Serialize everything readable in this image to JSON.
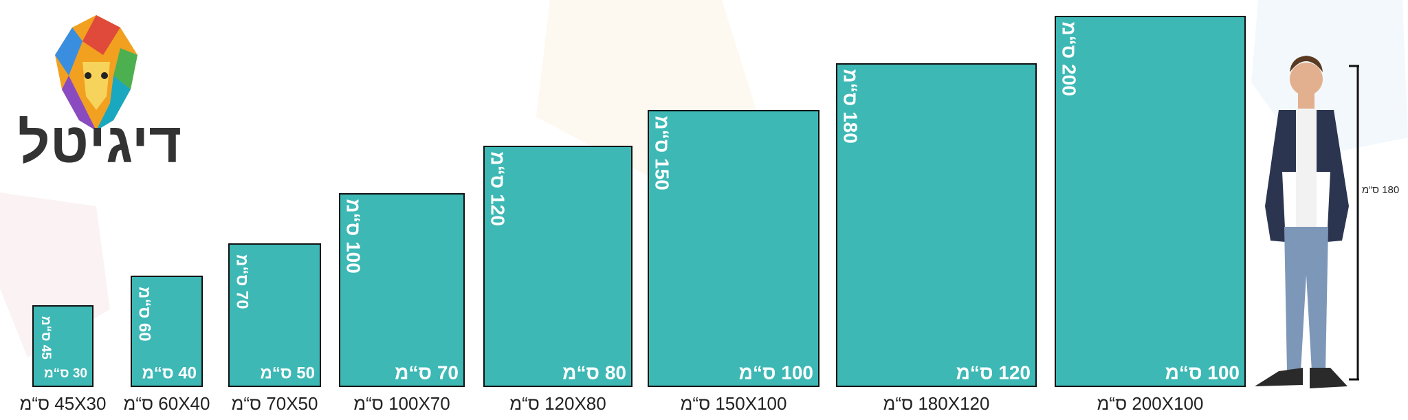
{
  "logo": {
    "text": "דיגיטל"
  },
  "sizes": [
    {
      "height_label": "45 ס“מ",
      "width_label": "30 ס“מ",
      "caption": "45X30 ס“מ"
    },
    {
      "height_label": "60 ס“מ",
      "width_label": "40 ס“מ",
      "caption": "60X40 ס“מ"
    },
    {
      "height_label": "70 ס“מ",
      "width_label": "50 ס“מ",
      "caption": "70X50 ס“מ"
    },
    {
      "height_label": "100 ס“מ",
      "width_label": "70 ס“מ",
      "caption": "100X70 ס“מ"
    },
    {
      "height_label": "120 ס“מ",
      "width_label": "80 ס“מ",
      "caption": "120X80 ס“מ"
    },
    {
      "height_label": "150 ס“מ",
      "width_label": "100 ס“מ",
      "caption": "150X100 ס“מ"
    },
    {
      "height_label": "180 ס“מ",
      "width_label": "120 ס“מ",
      "caption": "180X120 ס“מ"
    },
    {
      "height_label": "200 ס“מ",
      "width_label": "100 ס“מ",
      "caption": "200X100 ס“מ"
    }
  ],
  "person": {
    "height_label": "180 ס“מ"
  }
}
